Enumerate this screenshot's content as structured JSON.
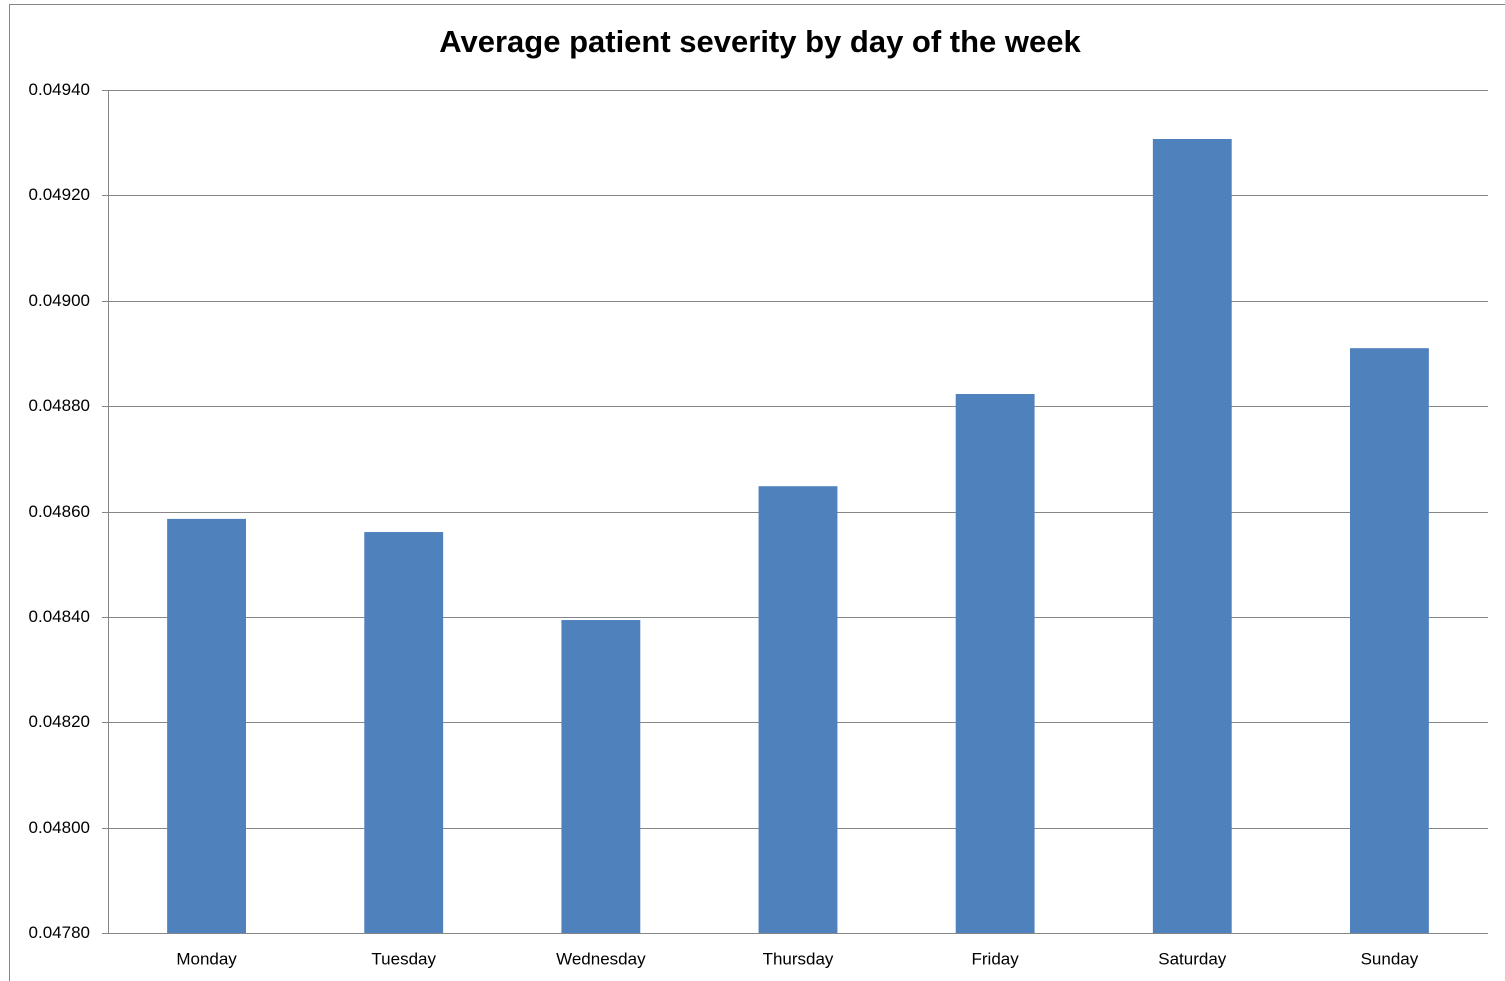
{
  "chart_data": {
    "type": "bar",
    "title": "Average patient severity by day of the week",
    "categories": [
      "Monday",
      "Tuesday",
      "Wednesday",
      "Thursday",
      "Friday",
      "Saturday",
      "Sunday"
    ],
    "values": [
      0.048586,
      0.048561,
      0.048394,
      0.048648,
      0.048823,
      0.049307,
      0.04891
    ],
    "color": "#4f81bd",
    "ylim": [
      0.0478,
      0.0494
    ],
    "yticks": [
      {
        "value": 0.0478,
        "label": "0.04780"
      },
      {
        "value": 0.048,
        "label": "0.04800"
      },
      {
        "value": 0.0482,
        "label": "0.04820"
      },
      {
        "value": 0.0484,
        "label": "0.04840"
      },
      {
        "value": 0.0486,
        "label": "0.04860"
      },
      {
        "value": 0.0488,
        "label": "0.04880"
      },
      {
        "value": 0.049,
        "label": "0.04900"
      },
      {
        "value": 0.0492,
        "label": "0.04920"
      },
      {
        "value": 0.0494,
        "label": "0.04940"
      }
    ],
    "grid": true
  }
}
